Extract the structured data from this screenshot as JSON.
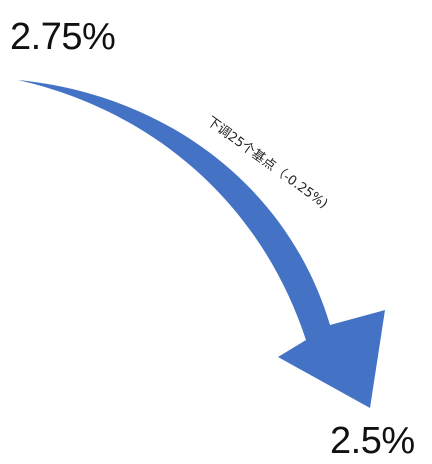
{
  "from_value": "2.75%",
  "to_value": "2.5%",
  "change_note": "下调25个基点（-0.25%)",
  "arrow_color": "#4472C4",
  "icon": "curved-down-arrow-icon"
}
